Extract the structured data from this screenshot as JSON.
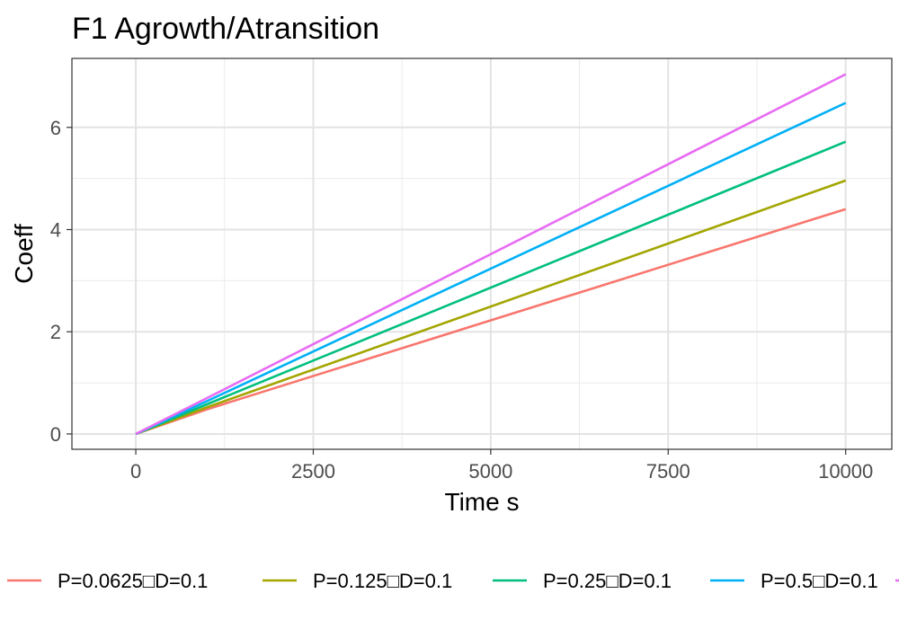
{
  "chart_data": {
    "type": "line",
    "title": "F1 Agrowth/Atransition",
    "xlabel": "Time s",
    "ylabel": "Coeff",
    "xlim": [
      -900,
      10650
    ],
    "ylim": [
      -0.3,
      7.35
    ],
    "x_ticks": [
      0,
      2500,
      5000,
      7500,
      10000
    ],
    "y_ticks": [
      0,
      2,
      4,
      6
    ],
    "x_tick_labels": [
      "0",
      "2500",
      "5000",
      "7500",
      "10000"
    ],
    "y_tick_labels": [
      "0",
      "2",
      "4",
      "6"
    ],
    "grid": true,
    "legend_position": "bottom",
    "series": [
      {
        "name": "P=0.0625□D=0.1",
        "color": "#F8766D",
        "x": [
          0,
          1000,
          10000
        ],
        "y": [
          0,
          0.48,
          4.4
        ]
      },
      {
        "name": "P=0.125□D=0.1",
        "color": "#A3A500",
        "x": [
          0,
          1000,
          10000
        ],
        "y": [
          0,
          0.52,
          4.96
        ]
      },
      {
        "name": "P=0.25□D=0.1",
        "color": "#00BF7D",
        "x": [
          0,
          1000,
          10000
        ],
        "y": [
          0,
          0.58,
          5.72
        ]
      },
      {
        "name": "P=0.5□D=0.1",
        "color": "#00B0F6",
        "x": [
          0,
          1000,
          10000
        ],
        "y": [
          0,
          0.64,
          6.48
        ]
      },
      {
        "name": "",
        "color": "#E76BF3",
        "x": [
          0,
          1000,
          10000
        ],
        "y": [
          0,
          0.7,
          7.04
        ]
      }
    ]
  }
}
